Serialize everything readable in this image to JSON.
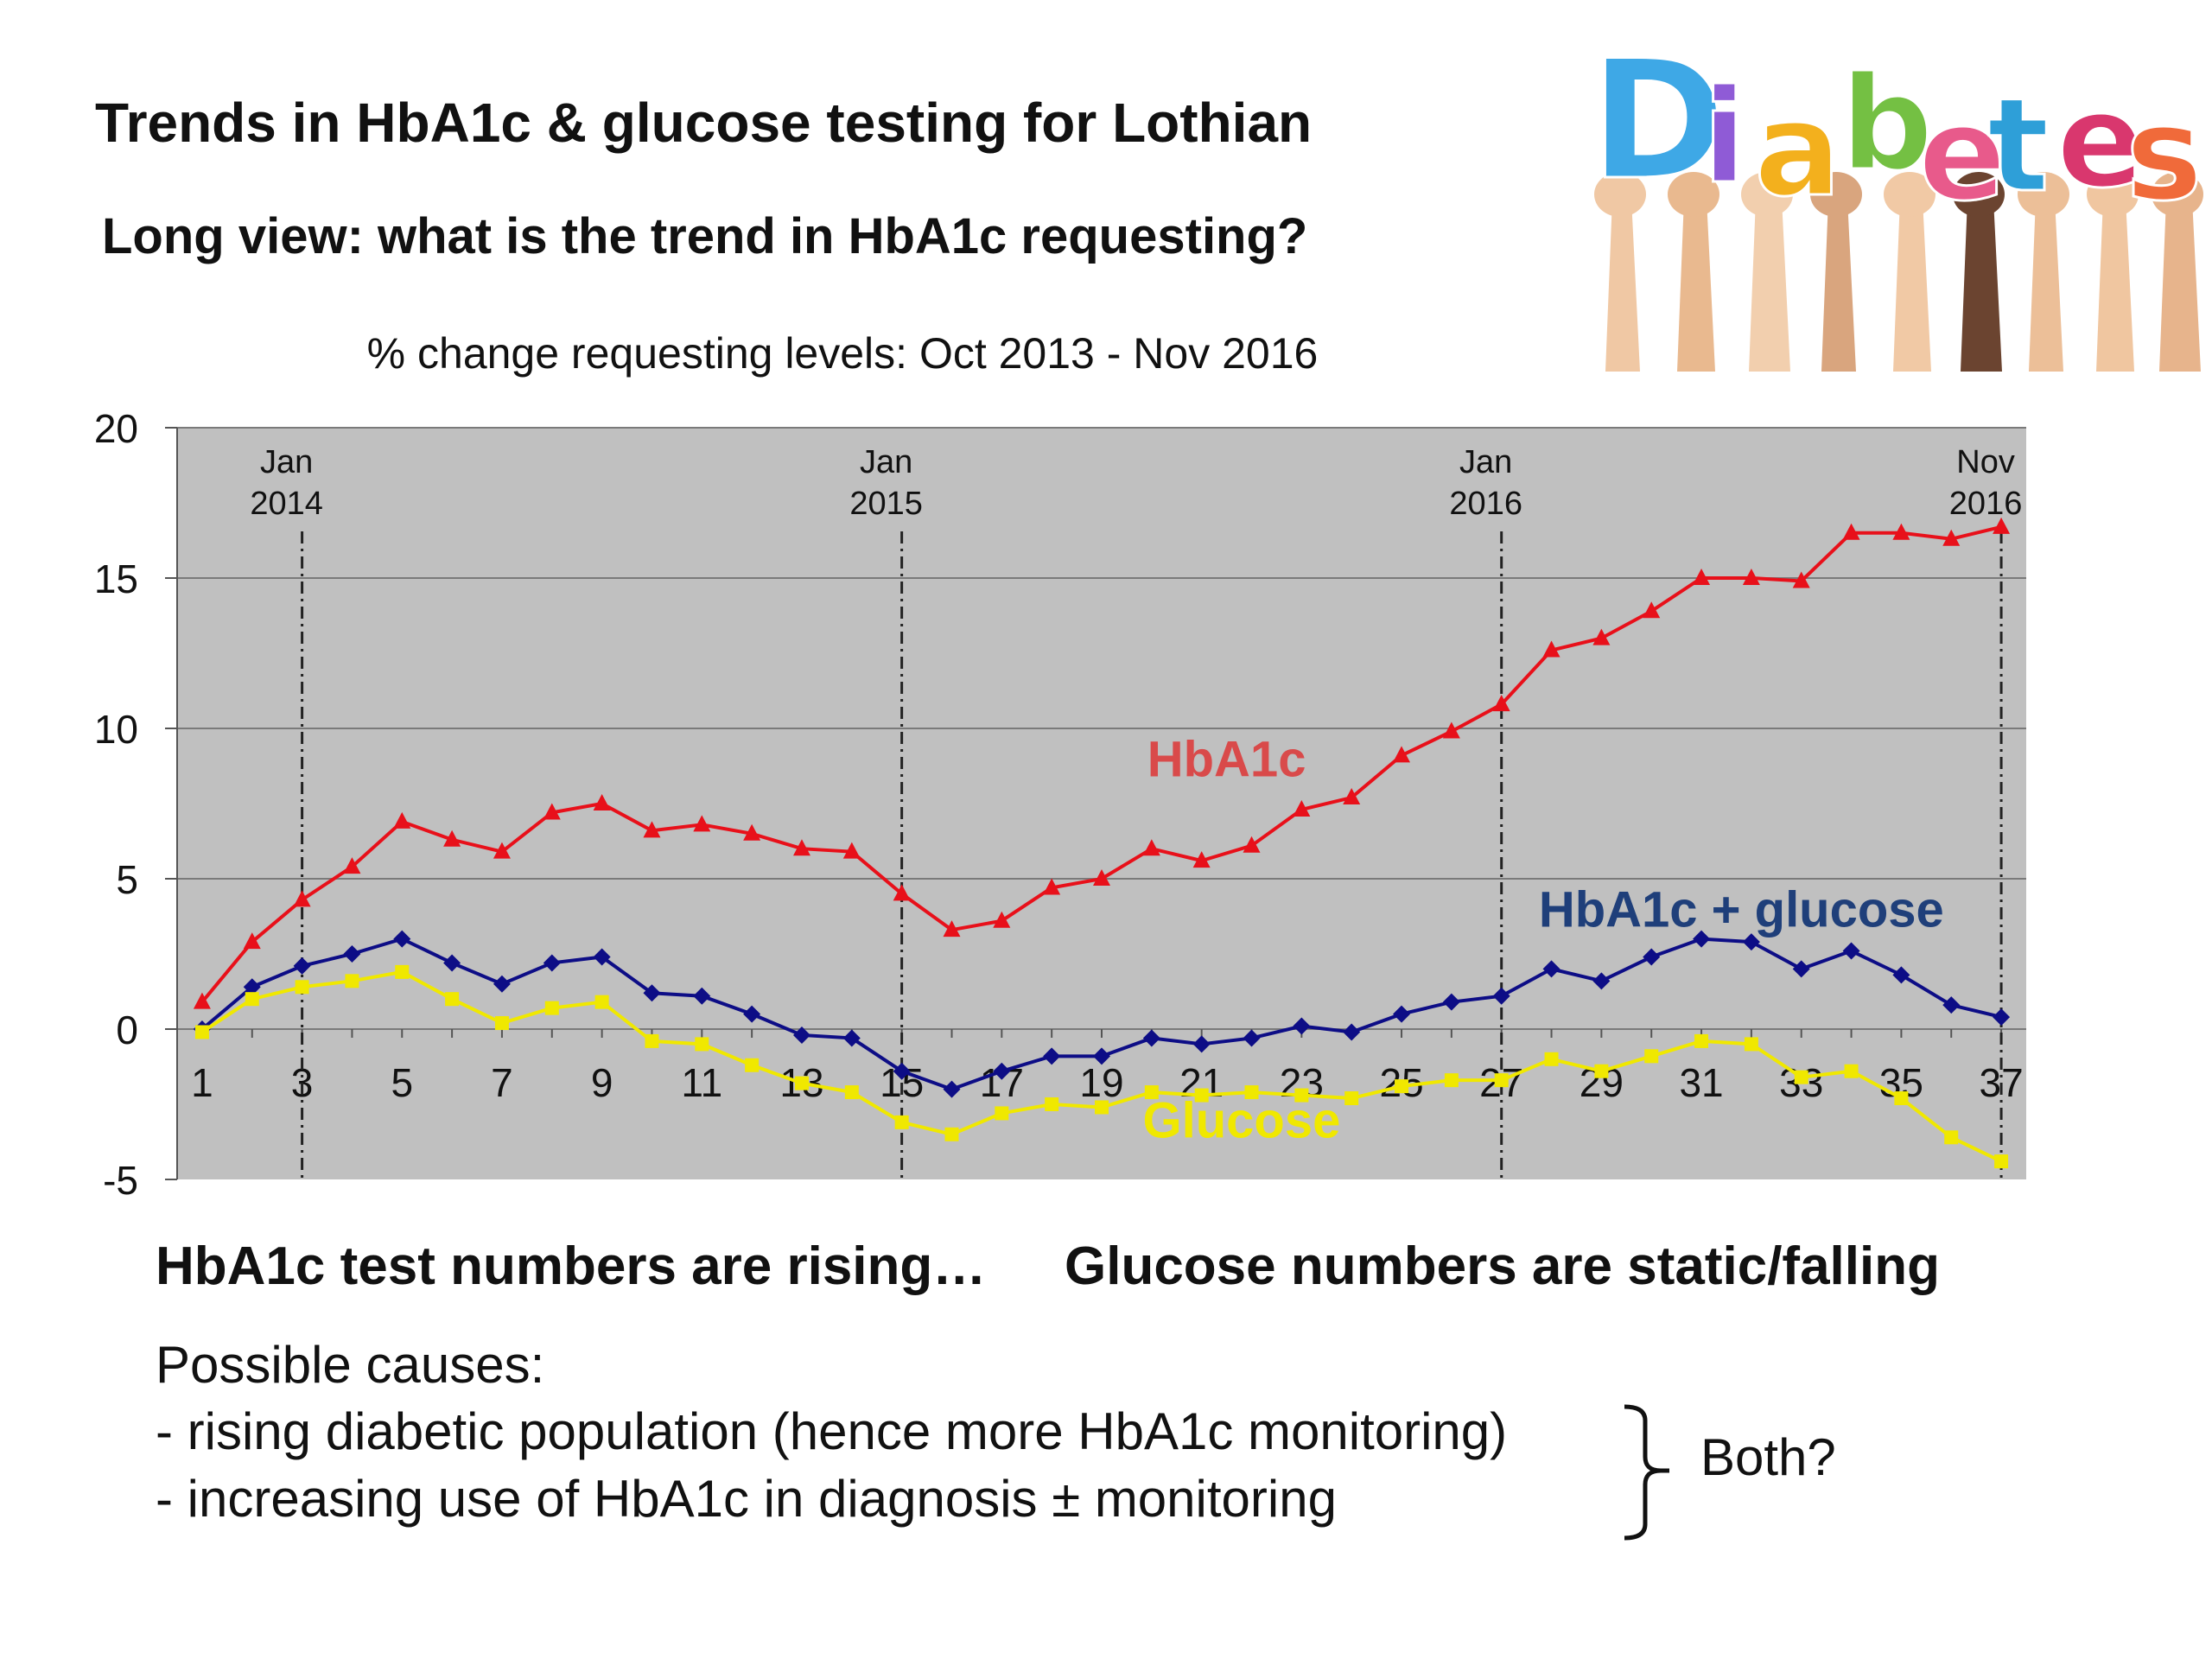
{
  "slide": {
    "title": "Trends in HbA1c & glucose testing for Lothian",
    "subtitle": "Long view: what is the trend in HbA1c requesting?",
    "observation_rising": "HbA1c test numbers are rising…",
    "observation_static": "Glucose numbers are static/falling",
    "causes_heading": "Possible causes:",
    "causes": [
      "- rising diabetic population (hence more HbA1c monitoring)",
      "- increasing use of HbA1c in diagnosis ± monitoring"
    ],
    "both_label": "Both?",
    "logo_word": "Diabetes",
    "logo_letter_colors": [
      "#3ea8e6",
      "#8f5bd6",
      "#f3b01d",
      "#74c043",
      "#e85a8b",
      "#2e9fd8",
      "#d9376e",
      "#f06a3a"
    ],
    "logo_icon": "hands-holding-letters-image"
  },
  "chart_data": {
    "type": "line",
    "title": "% change requesting levels: Oct 2013 - Nov 2016",
    "xlabel": "",
    "ylabel": "",
    "x": [
      1,
      2,
      3,
      4,
      5,
      6,
      7,
      8,
      9,
      10,
      11,
      12,
      13,
      14,
      15,
      16,
      17,
      18,
      19,
      20,
      21,
      22,
      23,
      24,
      25,
      26,
      27,
      28,
      29,
      30,
      31,
      32,
      33,
      34,
      35,
      36,
      37
    ],
    "x_tick_labels": [
      "1",
      "3",
      "5",
      "7",
      "9",
      "11",
      "13",
      "15",
      "17",
      "19",
      "21",
      "23",
      "25",
      "27",
      "29",
      "31",
      "33",
      "35",
      "37"
    ],
    "xlim": [
      0.5,
      37.5
    ],
    "ylim": [
      -5,
      20
    ],
    "y_ticks": [
      -5,
      0,
      5,
      10,
      15,
      20
    ],
    "grid": "horizontal",
    "background": "#c0c0c0",
    "markers": [
      {
        "x": 3,
        "label_line1": "Jan",
        "label_line2": "2014"
      },
      {
        "x": 15,
        "label_line1": "Jan",
        "label_line2": "2015"
      },
      {
        "x": 27,
        "label_line1": "Jan",
        "label_line2": "2016"
      },
      {
        "x": 37,
        "label_line1": "Nov",
        "label_line2": "2016"
      }
    ],
    "series": [
      {
        "name": "HbA1c",
        "color": "#e8101a",
        "label_color": "#d94a4a",
        "marker": "triangle",
        "label_anchor": [
          21.5,
          8.4
        ],
        "values": [
          0.9,
          2.9,
          4.3,
          5.4,
          6.9,
          6.3,
          5.9,
          7.2,
          7.5,
          6.6,
          6.8,
          6.5,
          6.0,
          5.9,
          4.5,
          3.3,
          3.6,
          4.7,
          5.0,
          6.0,
          5.6,
          6.1,
          7.3,
          7.7,
          9.1,
          9.9,
          10.8,
          12.6,
          13.0,
          13.9,
          15.0,
          15.0,
          14.9,
          16.5,
          16.5,
          16.3,
          16.7
        ]
      },
      {
        "name": "HbA1c + glucose",
        "color": "#0d0d86",
        "label_color": "#1f3f7a",
        "marker": "diamond",
        "label_anchor": [
          31.8,
          3.4
        ],
        "values": [
          0.0,
          1.4,
          2.1,
          2.5,
          3.0,
          2.2,
          1.5,
          2.2,
          2.4,
          1.2,
          1.1,
          0.5,
          -0.2,
          -0.3,
          -1.4,
          -2.0,
          -1.4,
          -0.9,
          -0.9,
          -0.3,
          -0.5,
          -0.3,
          0.1,
          -0.1,
          0.5,
          0.9,
          1.1,
          2.0,
          1.6,
          2.4,
          3.0,
          2.9,
          2.0,
          2.6,
          1.8,
          0.8,
          0.4
        ]
      },
      {
        "name": "Glucose",
        "color": "#f0e800",
        "label_color": "#f0e800",
        "marker": "square",
        "label_anchor": [
          21.8,
          -3.6
        ],
        "values": [
          -0.1,
          1.0,
          1.4,
          1.6,
          1.9,
          1.0,
          0.2,
          0.7,
          0.9,
          -0.4,
          -0.5,
          -1.2,
          -1.8,
          -2.1,
          -3.1,
          -3.5,
          -2.8,
          -2.5,
          -2.6,
          -2.1,
          -2.2,
          -2.1,
          -2.2,
          -2.3,
          -1.9,
          -1.7,
          -1.7,
          -1.0,
          -1.4,
          -0.9,
          -0.4,
          -0.5,
          -1.6,
          -1.4,
          -2.3,
          -3.6,
          -4.4
        ]
      }
    ]
  }
}
